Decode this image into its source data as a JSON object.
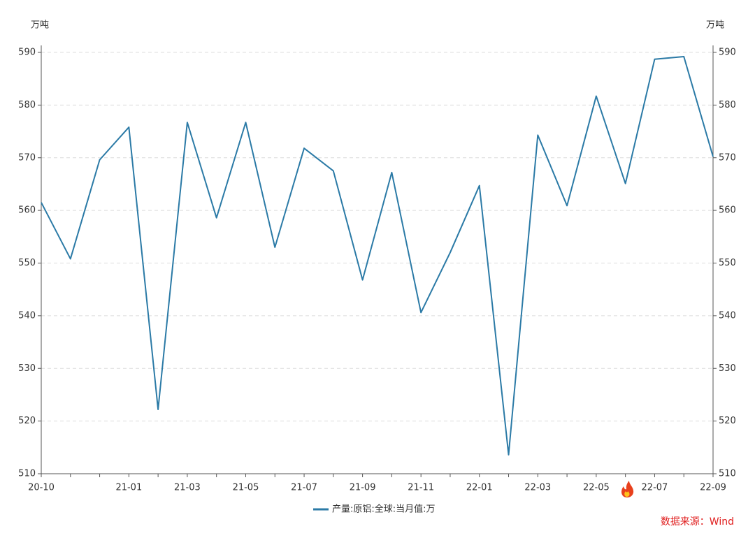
{
  "chart_data": {
    "type": "line",
    "y_label": "万吨",
    "y2_label": "万吨",
    "categories": [
      "20-10",
      null,
      null,
      "21-01",
      null,
      "21-03",
      null,
      "21-05",
      null,
      "21-07",
      null,
      "21-09",
      null,
      "21-11",
      null,
      "22-01",
      null,
      "22-03",
      null,
      "22-05",
      null,
      "22-07",
      null,
      "22-09"
    ],
    "series": [
      {
        "name": "产量:原铝:全球:当月值:万",
        "color": "#2b7aa6",
        "values": [
          561.5,
          550.8,
          569.6,
          575.8,
          522.2,
          576.7,
          558.6,
          576.7,
          553.0,
          571.8,
          567.5,
          546.8,
          567.2,
          540.6,
          552.0,
          564.7,
          513.6,
          574.3,
          560.9,
          581.7,
          565.1,
          588.7,
          589.2,
          570.2
        ]
      }
    ],
    "ylim": [
      510,
      590
    ],
    "yticks": [
      510,
      520,
      530,
      540,
      550,
      560,
      570,
      580,
      590
    ],
    "y2lim": [
      510,
      590
    ],
    "y2ticks": [
      510,
      520,
      530,
      540,
      550,
      560,
      570,
      580,
      590
    ],
    "grid": true,
    "legend": "bottom",
    "source": "数据来源：Wind"
  }
}
